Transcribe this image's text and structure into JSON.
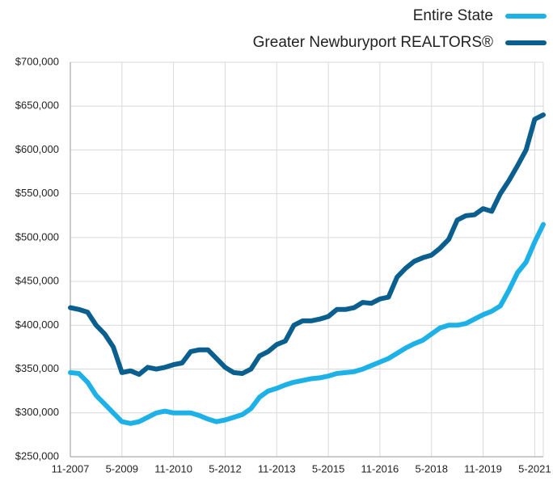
{
  "chart_data": {
    "type": "line",
    "categories": [
      "11-2007",
      null,
      null,
      null,
      null,
      null,
      "5-2009",
      null,
      null,
      null,
      null,
      null,
      "11-2010",
      null,
      null,
      null,
      null,
      null,
      "5-2012",
      null,
      null,
      null,
      null,
      null,
      "11-2013",
      null,
      null,
      null,
      null,
      null,
      "5-2015",
      null,
      null,
      null,
      null,
      null,
      "11-2016",
      null,
      null,
      null,
      null,
      null,
      "5-2018",
      null,
      null,
      null,
      null,
      null,
      "11-2019",
      null,
      null,
      null,
      null,
      null,
      "5-2021",
      null
    ],
    "series": [
      {
        "name": "Entire State",
        "color": "#1eb1e7",
        "values": [
          346000,
          345000,
          335000,
          320000,
          310000,
          300000,
          290000,
          288000,
          290000,
          295000,
          300000,
          302000,
          300000,
          300000,
          300000,
          297000,
          293000,
          290000,
          292000,
          295000,
          298000,
          305000,
          318000,
          325000,
          328000,
          332000,
          335000,
          337000,
          339000,
          340000,
          342000,
          345000,
          346000,
          347000,
          350000,
          354000,
          358000,
          362000,
          368000,
          374000,
          379000,
          383000,
          390000,
          397000,
          400000,
          400000,
          402000,
          407000,
          412000,
          416000,
          422000,
          440000,
          460000,
          472000,
          495000,
          515000
        ]
      },
      {
        "name": "Greater Newburyport REALTORS®",
        "color": "#0a5f8f",
        "values": [
          420000,
          418000,
          415000,
          400000,
          390000,
          375000,
          346000,
          348000,
          344000,
          352000,
          350000,
          352000,
          355000,
          357000,
          370000,
          372000,
          372000,
          362000,
          352000,
          346000,
          345000,
          350000,
          365000,
          370000,
          378000,
          382000,
          400000,
          405000,
          405000,
          407000,
          410000,
          418000,
          418000,
          420000,
          426000,
          425000,
          430000,
          432000,
          455000,
          465000,
          473000,
          477000,
          480000,
          488000,
          498000,
          520000,
          525000,
          526000,
          533000,
          530000,
          550000,
          565000,
          582000,
          600000,
          635000,
          640000
        ]
      }
    ],
    "ylim": [
      250000,
      700000
    ],
    "yticks": [
      {
        "value": 250000,
        "label": "$250,000"
      },
      {
        "value": 300000,
        "label": "$300,000"
      },
      {
        "value": 350000,
        "label": "$350,000"
      },
      {
        "value": 400000,
        "label": "$400,000"
      },
      {
        "value": 450000,
        "label": "$450,000"
      },
      {
        "value": 500000,
        "label": "$500,000"
      },
      {
        "value": 550000,
        "label": "$550,000"
      },
      {
        "value": 600000,
        "label": "$600,000"
      },
      {
        "value": 650000,
        "label": "$650,000"
      },
      {
        "value": 700000,
        "label": "$700,000"
      }
    ],
    "grid": true,
    "legend": "top-right"
  }
}
